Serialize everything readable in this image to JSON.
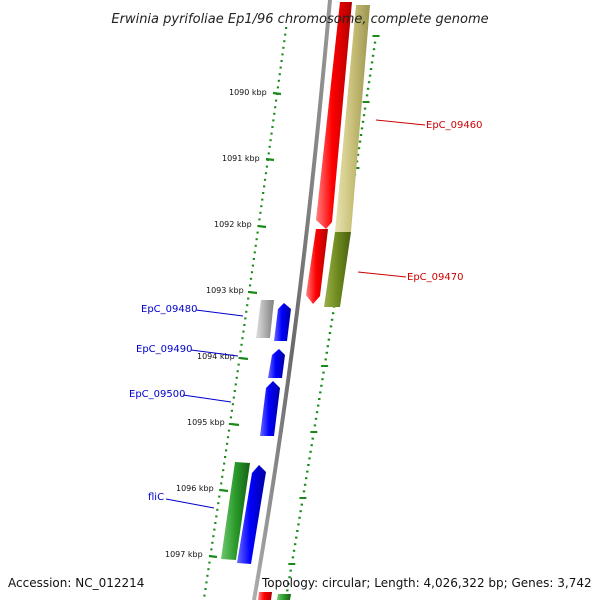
{
  "title": "Erwinia pyrifoliae Ep1/96 chromosome, complete genome",
  "accession_line": "Accession: NC_012214",
  "topology_line": "Topology: circular; Length: 4,026,322 bp; Genes: 3,742",
  "scale_labels": [
    "1090 kbp",
    "1091 kbp",
    "1092 kbp",
    "1093 kbp",
    "1094 kbp",
    "1095 kbp",
    "1096 kbp",
    "1097 kbp"
  ],
  "genes": [
    {
      "label": "EpC_09460",
      "color": "#cc0000"
    },
    {
      "label": "EpC_09470",
      "color": "#cc0000"
    },
    {
      "label": "EpC_09480",
      "color": "#0000cc"
    },
    {
      "label": "EpC_09490",
      "color": "#0000cc"
    },
    {
      "label": "EpC_09500",
      "color": "#0000cc"
    },
    {
      "label": "fliC",
      "color": "#0000cc"
    }
  ],
  "colors": {
    "tick_green": "#1a8a1a",
    "backbone_gray": "#7a7a7a",
    "forward_gene": "#ff0000",
    "reverse_gene": "#0000ff",
    "olive_feature": "#c8c078",
    "dark_olive_feature": "#6e8a1e",
    "green_feature": "#2a9a2a",
    "gray_feature": "#b0b0b0"
  }
}
